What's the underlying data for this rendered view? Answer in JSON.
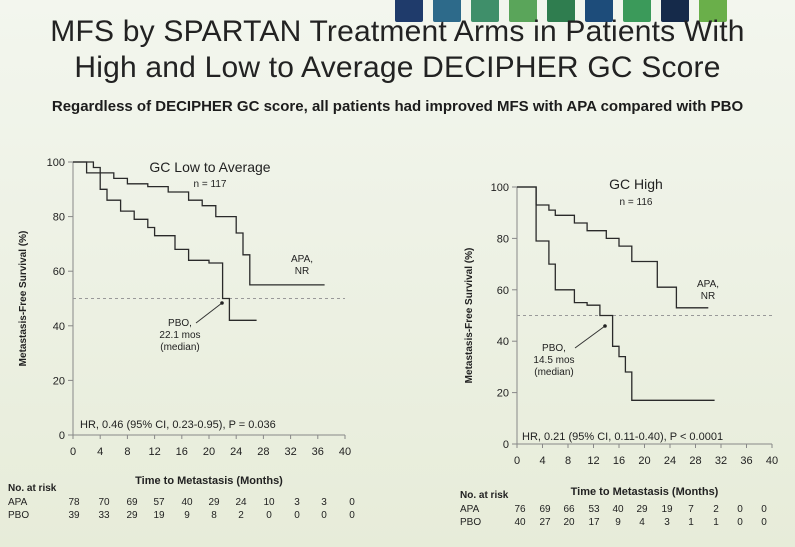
{
  "slide": {
    "title_line1": "MFS by SPARTAN Treatment Arms in Patients With",
    "title_line2": "High and Low to Average DECIPHER GC Score",
    "subtitle": "Regardless of DECIPHER GC score, all patients had improved MFS with APA compared with PBO",
    "deco_colors": [
      "#1f3b6b",
      "#2d6a8a",
      "#3f8f6a",
      "#5aa55a",
      "#2f7d4f",
      "#1d4c7a",
      "#3b9a5a",
      "#152a4a",
      "#6aaf4a"
    ]
  },
  "chart_data": [
    {
      "type": "line",
      "title": "GC Low to Average",
      "n_label": "n = 117",
      "xlabel": "Time to Metastasis (Months)",
      "ylabel": "Metastasis-Free Survival (%)",
      "xlim": [
        0,
        40
      ],
      "ylim": [
        0,
        100
      ],
      "xticks": [
        0,
        4,
        8,
        12,
        16,
        20,
        24,
        28,
        32,
        36,
        40
      ],
      "yticks": [
        0,
        20,
        40,
        60,
        80,
        100
      ],
      "median_line": 50,
      "series": [
        {
          "name": "APA",
          "color": "#2a2a2a",
          "end_label": [
            "APA,",
            "NR"
          ],
          "x": [
            0,
            3,
            3,
            4,
            4,
            6,
            6,
            8,
            8,
            11,
            11,
            14,
            14,
            17,
            17,
            19,
            19,
            21,
            21,
            24,
            24,
            25,
            25,
            26,
            26,
            37
          ],
          "y": [
            100,
            100,
            98,
            98,
            96,
            96,
            94,
            94,
            92,
            92,
            91,
            91,
            89,
            89,
            86,
            86,
            84,
            84,
            80,
            80,
            74,
            74,
            66,
            66,
            55,
            55
          ]
        },
        {
          "name": "PBO",
          "color": "#2a2a2a",
          "end_label": [
            "PBO,",
            "22.1 mos",
            "(median)"
          ],
          "x": [
            0,
            2,
            2,
            4,
            4,
            5,
            5,
            7,
            7,
            9,
            9,
            11,
            11,
            12,
            12,
            15,
            15,
            17,
            17,
            20,
            20,
            22,
            22,
            23,
            23,
            27
          ],
          "y": [
            100,
            100,
            96,
            96,
            90,
            90,
            86,
            86,
            82,
            82,
            79,
            79,
            76,
            76,
            73,
            73,
            68,
            68,
            64,
            64,
            63,
            63,
            50,
            50,
            42,
            42
          ]
        }
      ],
      "annotation": "HR, 0.46 (95% CI, 0.23-0.95), P = 0.036"
    },
    {
      "type": "line",
      "title": "GC High",
      "n_label": "n = 116",
      "xlabel": "Time to Metastasis (Months)",
      "ylabel": "Metastasis-Free Survival (%)",
      "xlim": [
        0,
        40
      ],
      "ylim": [
        0,
        100
      ],
      "xticks": [
        0,
        4,
        8,
        12,
        16,
        20,
        24,
        28,
        32,
        36,
        40
      ],
      "yticks": [
        0,
        20,
        40,
        60,
        80,
        100
      ],
      "median_line": 50,
      "series": [
        {
          "name": "APA",
          "color": "#2a2a2a",
          "end_label": [
            "APA,",
            "NR"
          ],
          "x": [
            0,
            3,
            3,
            5,
            5,
            6,
            6,
            9,
            9,
            11,
            11,
            14,
            14,
            16,
            16,
            18,
            18,
            22,
            22,
            25,
            25,
            30
          ],
          "y": [
            100,
            100,
            93,
            93,
            91,
            91,
            89,
            89,
            86,
            86,
            83,
            83,
            80,
            80,
            77,
            77,
            71,
            71,
            61,
            61,
            53,
            53
          ]
        },
        {
          "name": "PBO",
          "color": "#2a2a2a",
          "end_label": [
            "PBO,",
            "14.5 mos",
            "(median)"
          ],
          "x": [
            0,
            3,
            3,
            5,
            5,
            6,
            6,
            9,
            9,
            11,
            11,
            13,
            13,
            15,
            15,
            16,
            16,
            17,
            17,
            18,
            18,
            31
          ],
          "y": [
            100,
            100,
            79,
            79,
            70,
            70,
            60,
            60,
            55,
            55,
            54,
            54,
            50,
            50,
            38,
            38,
            34,
            34,
            28,
            28,
            17,
            17
          ]
        }
      ],
      "annotation": "HR, 0.21 (95% CI, 0.11-0.40), P < 0.0001"
    }
  ],
  "risk_tables": [
    {
      "header": "No. at risk",
      "rows": [
        {
          "label": "APA",
          "values": [
            "78",
            "70",
            "69",
            "57",
            "40",
            "29",
            "24",
            "10",
            "3",
            "3",
            "0"
          ]
        },
        {
          "label": "PBO",
          "values": [
            "39",
            "33",
            "29",
            "19",
            "9",
            "8",
            "2",
            "0",
            "0",
            "0",
            "0"
          ]
        }
      ]
    },
    {
      "header": "No. at risk",
      "rows": [
        {
          "label": "APA",
          "values": [
            "76",
            "69",
            "66",
            "53",
            "40",
            "29",
            "19",
            "7",
            "2",
            "0",
            "0"
          ]
        },
        {
          "label": "PBO",
          "values": [
            "40",
            "27",
            "20",
            "17",
            "9",
            "4",
            "3",
            "1",
            "1",
            "0",
            "0"
          ]
        }
      ]
    }
  ]
}
